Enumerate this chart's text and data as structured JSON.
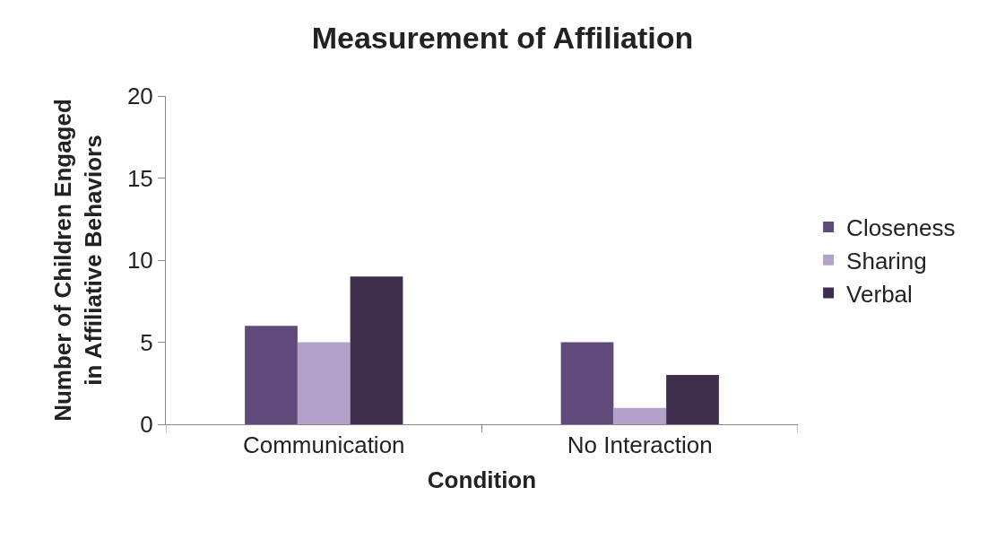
{
  "chart_data": {
    "type": "bar",
    "title": "Measurement of Affiliation",
    "xlabel": "Condition",
    "ylabel": "Number of Children Engaged\nin Affiliative Behaviors",
    "categories": [
      "Communication",
      "No Interaction"
    ],
    "series": [
      {
        "name": "Closeness",
        "color": "#5f4a7a",
        "values": [
          6,
          5
        ]
      },
      {
        "name": "Sharing",
        "color": "#b3a2c8",
        "values": [
          5,
          1
        ]
      },
      {
        "name": "Verbal",
        "color": "#3e2d4d",
        "values": [
          9,
          3
        ]
      }
    ],
    "ylim": [
      0,
      20
    ],
    "yticks": [
      0,
      5,
      10,
      15,
      20
    ],
    "grid": false,
    "legend": "right"
  }
}
